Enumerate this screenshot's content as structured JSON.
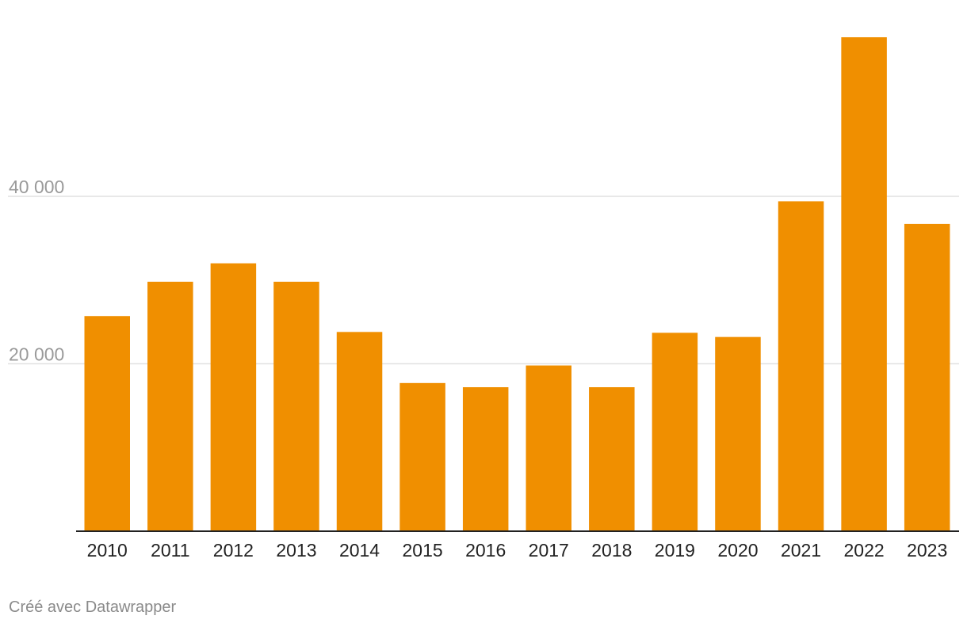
{
  "chart_data": {
    "type": "bar",
    "title": "",
    "xlabel": "",
    "ylabel": "",
    "categories": [
      "2010",
      "2011",
      "2012",
      "2013",
      "2014",
      "2015",
      "2016",
      "2017",
      "2018",
      "2019",
      "2020",
      "2021",
      "2022",
      "2023"
    ],
    "values": [
      25700,
      29800,
      32000,
      29800,
      23800,
      17700,
      17200,
      19800,
      17200,
      23700,
      23200,
      39400,
      59000,
      36700
    ],
    "ylim": [
      0,
      59000
    ],
    "yticks": [
      {
        "value": 20000,
        "label": "20 000"
      },
      {
        "value": 40000,
        "label": "40 000"
      }
    ],
    "grid": true,
    "legend": "none",
    "bar_color": "#f08f00"
  },
  "footer": {
    "credit": "Créé avec Datawrapper"
  }
}
